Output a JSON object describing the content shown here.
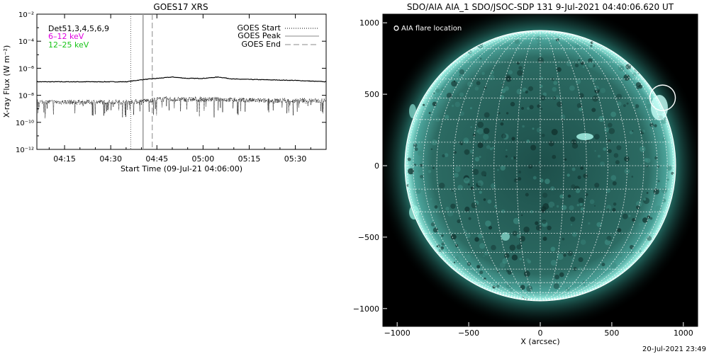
{
  "chart_data": [
    {
      "type": "line",
      "title": "GOES17 XRS",
      "xlabel": "Start Time (09-Jul-21 04:06:00)",
      "ylabel": "X-ray Flux (W m⁻²)",
      "y_scale": "log",
      "ylim": [
        "1e-12",
        "1e-2"
      ],
      "y_ticks": [
        "10⁻¹²",
        "10⁻¹⁰",
        "10⁻⁸",
        "10⁻⁶",
        "10⁻⁴",
        "10⁻²"
      ],
      "x_ticks": [
        "04:15",
        "04:30",
        "04:45",
        "05:00",
        "05:15",
        "05:30"
      ],
      "x_tick_minutes": [
        15,
        30,
        45,
        60,
        75,
        90
      ],
      "xlim_minutes": [
        6,
        100
      ],
      "annotations": [
        "Det51,3,4,5,6,9",
        "6–12 keV",
        "12–25 keV"
      ],
      "legend_position": "top-right",
      "legend": [
        {
          "label": "GOES Start",
          "style": "dotted"
        },
        {
          "label": "GOES Peak",
          "style": "solid"
        },
        {
          "label": "GOES End",
          "style": "dashed"
        }
      ],
      "event_lines_minutes": {
        "start": 36.5,
        "peak": 40.5,
        "end": 43.5
      },
      "series": [
        {
          "style": "solid",
          "color": "#000000",
          "x_minutes": [
            6,
            20,
            35,
            40,
            45,
            50,
            55,
            60,
            65,
            70,
            80,
            90,
            100
          ],
          "log10_values": [
            -7.0,
            -7.0,
            -7.0,
            -6.85,
            -6.75,
            -6.65,
            -6.75,
            -6.75,
            -6.65,
            -6.8,
            -6.85,
            -6.9,
            -7.0
          ]
        },
        {
          "style": "dotted",
          "color": "#000000",
          "x_minutes": [
            6,
            20,
            35,
            40,
            45,
            55,
            65,
            80,
            100
          ],
          "log10_values": [
            -8.5,
            -8.5,
            -8.5,
            -8.45,
            -8.3,
            -8.3,
            -8.3,
            -8.4,
            -8.4
          ]
        }
      ]
    },
    {
      "type": "image",
      "title": "SDO/AIA AIA_1 SDO/JSOC-SDP 131  9-Jul-2021 04:40:06.620 UT",
      "xlabel": "X (arcsec)",
      "ylabel": "",
      "xlim": [
        -1100,
        1100
      ],
      "ylim": [
        -1100,
        1100
      ],
      "x_ticks": [
        -1000,
        -500,
        0,
        500,
        1000
      ],
      "y_ticks": [
        -1000,
        -500,
        0,
        500,
        1000
      ],
      "solar_radius_arcsec": 945,
      "grid": true,
      "annotation": "O AIA flare location",
      "flare_location_arcsec": {
        "x": 855,
        "y": 475
      },
      "colors": {
        "background": "#000000",
        "disk": "#2a6860",
        "limb": "#aef5ea"
      }
    }
  ],
  "footer": {
    "timestamp": "20-Jul-2021 23:49"
  }
}
